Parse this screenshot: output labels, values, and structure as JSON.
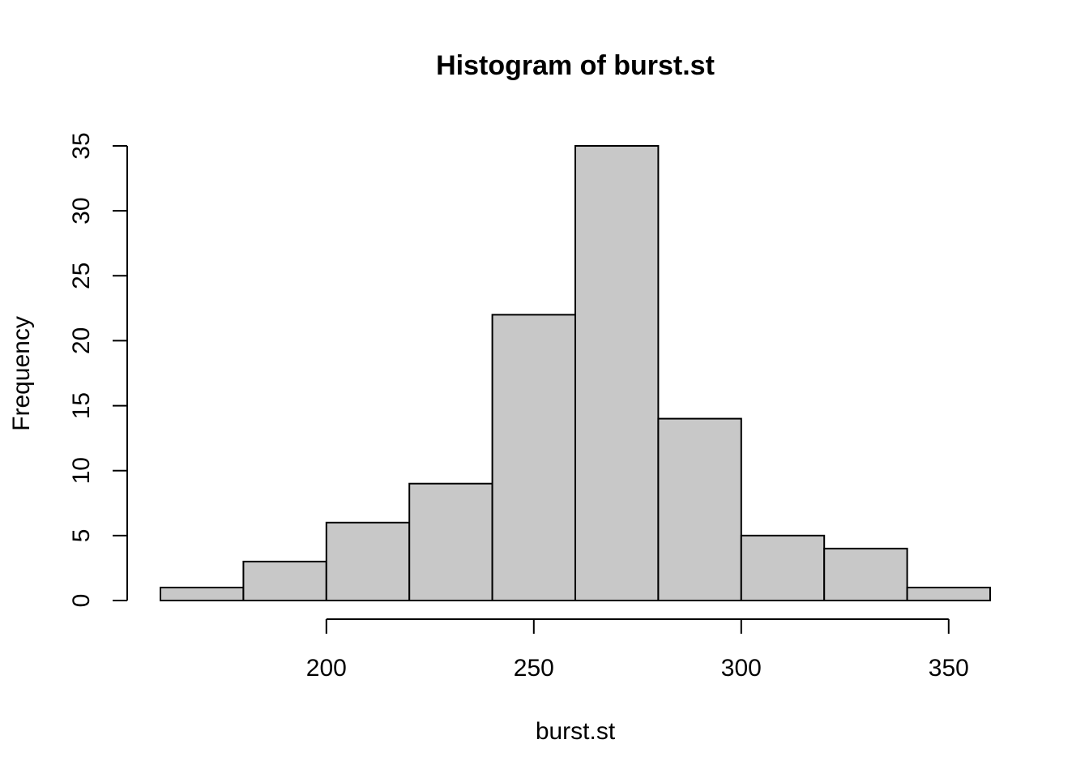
{
  "chart_data": {
    "type": "bar",
    "title": "Histogram of burst.st",
    "xlabel": "burst.st",
    "ylabel": "Frequency",
    "bin_edges": [
      160,
      180,
      200,
      220,
      240,
      260,
      280,
      300,
      320,
      340,
      360
    ],
    "counts": [
      1,
      3,
      6,
      9,
      22,
      35,
      14,
      5,
      4,
      1
    ],
    "x_ticks": [
      200,
      250,
      300,
      350
    ],
    "y_ticks": [
      0,
      5,
      10,
      15,
      20,
      25,
      30,
      35
    ],
    "xlim": [
      160,
      360
    ],
    "ylim": [
      0,
      35
    ],
    "grid": false,
    "bar_fill": "#c8c8c8",
    "bar_stroke": "#000000"
  }
}
